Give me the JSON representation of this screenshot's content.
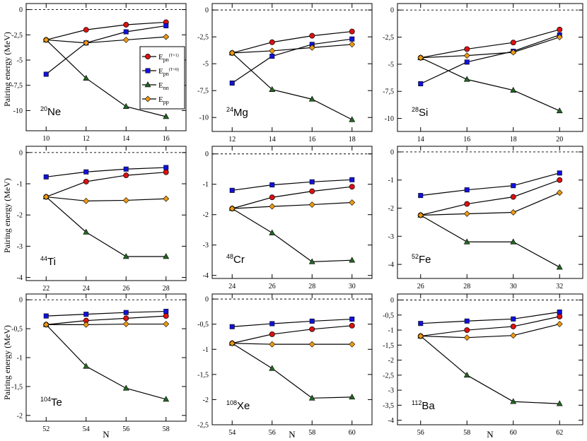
{
  "figure": {
    "ylabel": "Pairing energy (MeV)",
    "xlabel": "N",
    "legend": [
      {
        "name": "E",
        "sub": "pn",
        "sup": "(T=1)",
        "color": "#dd1111",
        "marker": "circle"
      },
      {
        "name": "E",
        "sub": "pn",
        "sup": "(T=0)",
        "color": "#1111dd",
        "marker": "square"
      },
      {
        "name": "E",
        "sub": "nn",
        "sup": "",
        "color": "#226622",
        "marker": "triangle"
      },
      {
        "name": "E",
        "sub": "pp",
        "sup": "",
        "color": "#ee9911",
        "marker": "diamond"
      }
    ]
  },
  "chart_data": [
    {
      "type": "line",
      "nucleus": "Ne",
      "mass": "20",
      "x": [
        10,
        12,
        14,
        16
      ],
      "xlim": [
        9,
        17
      ],
      "ylim": [
        -12,
        0.6
      ],
      "yticks": [
        0,
        -2.5,
        -5,
        -7.5,
        -10
      ],
      "ytick_labels": [
        "0",
        "-2,5",
        "-5",
        "-7,5",
        "-10"
      ],
      "xticks": [
        10,
        12,
        14,
        16
      ],
      "series": [
        {
          "name": "Epn(T=1)",
          "values": [
            -3.0,
            -2.0,
            -1.5,
            -1.25
          ]
        },
        {
          "name": "Epn(T=0)",
          "values": [
            -6.4,
            -3.3,
            -2.2,
            -1.6
          ]
        },
        {
          "name": "Enn",
          "values": [
            -3.0,
            -6.8,
            -9.6,
            -10.6
          ]
        },
        {
          "name": "Epp",
          "values": [
            -3.0,
            -3.3,
            -3.0,
            -2.7
          ]
        }
      ]
    },
    {
      "type": "line",
      "nucleus": "Mg",
      "mass": "24",
      "x": [
        12,
        14,
        16,
        18
      ],
      "xlim": [
        11,
        19
      ],
      "ylim": [
        -11.3,
        0.6
      ],
      "yticks": [
        0,
        -2.5,
        -5,
        -7.5,
        -10
      ],
      "ytick_labels": [
        "0",
        "-2,5",
        "-5",
        "-7,5",
        "-10"
      ],
      "xticks": [
        12,
        14,
        16,
        18
      ],
      "series": [
        {
          "name": "Epn(T=1)",
          "values": [
            -4.0,
            -3.0,
            -2.4,
            -2.0
          ]
        },
        {
          "name": "Epn(T=0)",
          "values": [
            -6.8,
            -4.3,
            -3.2,
            -2.7
          ]
        },
        {
          "name": "Enn",
          "values": [
            -4.0,
            -7.4,
            -8.3,
            -10.2
          ]
        },
        {
          "name": "Epp",
          "values": [
            -4.0,
            -3.8,
            -3.5,
            -3.2
          ]
        }
      ]
    },
    {
      "type": "line",
      "nucleus": "Si",
      "mass": "28",
      "x": [
        14,
        16,
        18,
        20
      ],
      "xlim": [
        13,
        21
      ],
      "ylim": [
        -11.2,
        0.6
      ],
      "yticks": [
        0,
        -2.5,
        -5,
        -7.5,
        -10
      ],
      "ytick_labels": [
        "0",
        "-2,5",
        "-5",
        "-7,5",
        "-10"
      ],
      "xticks": [
        14,
        16,
        18,
        20
      ],
      "series": [
        {
          "name": "Epn(T=1)",
          "values": [
            -4.4,
            -3.6,
            -3.0,
            -1.8
          ]
        },
        {
          "name": "Epn(T=0)",
          "values": [
            -6.8,
            -4.8,
            -3.8,
            -2.3
          ]
        },
        {
          "name": "Enn",
          "values": [
            -4.4,
            -6.4,
            -7.4,
            -9.3
          ]
        },
        {
          "name": "Epp",
          "values": [
            -4.4,
            -4.2,
            -3.9,
            -2.5
          ]
        }
      ]
    },
    {
      "type": "line",
      "nucleus": "Ti",
      "mass": "44",
      "x": [
        22,
        24,
        26,
        28
      ],
      "xlim": [
        21,
        29
      ],
      "ylim": [
        -4.1,
        0.2
      ],
      "yticks": [
        0,
        -1,
        -2,
        -3,
        -4
      ],
      "ytick_labels": [
        "0",
        "-1",
        "-2",
        "-3",
        "-4"
      ],
      "xticks": [
        22,
        24,
        26,
        28
      ],
      "series": [
        {
          "name": "Epn(T=1)",
          "values": [
            -1.42,
            -0.93,
            -0.73,
            -0.63
          ]
        },
        {
          "name": "Epn(T=0)",
          "values": [
            -0.78,
            -0.62,
            -0.53,
            -0.48
          ]
        },
        {
          "name": "Enn",
          "values": [
            -1.42,
            -2.55,
            -3.33,
            -3.33
          ]
        },
        {
          "name": "Epp",
          "values": [
            -1.42,
            -1.55,
            -1.53,
            -1.48
          ]
        }
      ]
    },
    {
      "type": "line",
      "nucleus": "Cr",
      "mass": "48",
      "x": [
        24,
        26,
        28,
        30
      ],
      "xlim": [
        23,
        31
      ],
      "ylim": [
        -4.1,
        0.25
      ],
      "yticks": [
        0,
        -1,
        -2,
        -3,
        -4
      ],
      "ytick_labels": [
        "0",
        "-1",
        "-2",
        "-3",
        "-4"
      ],
      "xticks": [
        24,
        26,
        28,
        30
      ],
      "series": [
        {
          "name": "Epn(T=1)",
          "values": [
            -1.8,
            -1.43,
            -1.23,
            -1.08
          ]
        },
        {
          "name": "Epn(T=0)",
          "values": [
            -1.2,
            -1.02,
            -0.92,
            -0.85
          ]
        },
        {
          "name": "Enn",
          "values": [
            -1.8,
            -2.6,
            -3.55,
            -3.5
          ]
        },
        {
          "name": "Epp",
          "values": [
            -1.8,
            -1.73,
            -1.67,
            -1.6
          ]
        }
      ]
    },
    {
      "type": "line",
      "nucleus": "Fe",
      "mass": "52",
      "x": [
        26,
        28,
        30,
        32
      ],
      "xlim": [
        25,
        33
      ],
      "ylim": [
        -4.5,
        0.2
      ],
      "yticks": [
        0,
        -1,
        -2,
        -3,
        -4
      ],
      "ytick_labels": [
        "0",
        "-1",
        "-2",
        "-3",
        "-4"
      ],
      "xticks": [
        26,
        28,
        30,
        32
      ],
      "series": [
        {
          "name": "Epn(T=1)",
          "values": [
            -2.25,
            -1.85,
            -1.6,
            -1.0
          ]
        },
        {
          "name": "Epn(T=0)",
          "values": [
            -1.55,
            -1.35,
            -1.2,
            -0.75
          ]
        },
        {
          "name": "Enn",
          "values": [
            -2.25,
            -3.2,
            -3.2,
            -4.1
          ]
        },
        {
          "name": "Epp",
          "values": [
            -2.25,
            -2.2,
            -2.15,
            -1.45
          ]
        }
      ]
    },
    {
      "type": "line",
      "nucleus": "Te",
      "mass": "104",
      "x": [
        52,
        54,
        56,
        58
      ],
      "xlim": [
        51,
        59
      ],
      "ylim": [
        -2.1,
        0.1
      ],
      "yticks": [
        0,
        -0.5,
        -1,
        -1.5,
        -2
      ],
      "ytick_labels": [
        "0",
        "-0,5",
        "-1",
        "-1,5",
        "-2"
      ],
      "xticks": [
        52,
        54,
        56,
        58
      ],
      "series": [
        {
          "name": "Epn(T=1)",
          "values": [
            -0.43,
            -0.36,
            -0.32,
            -0.28
          ]
        },
        {
          "name": "Epn(T=0)",
          "values": [
            -0.28,
            -0.25,
            -0.22,
            -0.2
          ]
        },
        {
          "name": "Enn",
          "values": [
            -0.43,
            -1.15,
            -1.53,
            -1.72
          ]
        },
        {
          "name": "Epp",
          "values": [
            -0.43,
            -0.43,
            -0.42,
            -0.42
          ]
        }
      ]
    },
    {
      "type": "line",
      "nucleus": "Xe",
      "mass": "108",
      "x": [
        54,
        56,
        58,
        60
      ],
      "xlim": [
        53,
        61
      ],
      "ylim": [
        -2.5,
        0.1
      ],
      "yticks": [
        0,
        -0.5,
        -1,
        -1.5,
        -2,
        -2.5
      ],
      "ytick_labels": [
        "0",
        "-0,5",
        "-1",
        "-1,5",
        "-2",
        "-2,5"
      ],
      "xticks": [
        54,
        56,
        58,
        60
      ],
      "series": [
        {
          "name": "Epn(T=1)",
          "values": [
            -0.88,
            -0.7,
            -0.6,
            -0.53
          ]
        },
        {
          "name": "Epn(T=0)",
          "values": [
            -0.55,
            -0.49,
            -0.44,
            -0.4
          ]
        },
        {
          "name": "Enn",
          "values": [
            -0.88,
            -1.38,
            -1.97,
            -1.95
          ]
        },
        {
          "name": "Epp",
          "values": [
            -0.88,
            -0.9,
            -0.9,
            -0.9
          ]
        }
      ]
    },
    {
      "type": "line",
      "nucleus": "Ba",
      "mass": "112",
      "x": [
        56,
        58,
        60,
        62
      ],
      "xlim": [
        55,
        63
      ],
      "ylim": [
        -4.15,
        0.2
      ],
      "yticks": [
        0,
        -0.5,
        -1,
        -1.5,
        -2,
        -2.5,
        -3,
        -3.5,
        -4
      ],
      "ytick_labels": [
        "0",
        "-0,5",
        "-1",
        "-1,5",
        "-2",
        "-2,5",
        "-3",
        "-3,5",
        "-4"
      ],
      "xticks": [
        56,
        58,
        60,
        62
      ],
      "series": [
        {
          "name": "Epn(T=1)",
          "values": [
            -1.2,
            -1.0,
            -0.88,
            -0.55
          ]
        },
        {
          "name": "Epn(T=0)",
          "values": [
            -0.78,
            -0.7,
            -0.63,
            -0.4
          ]
        },
        {
          "name": "Enn",
          "values": [
            -1.2,
            -2.5,
            -3.38,
            -3.45
          ]
        },
        {
          "name": "Epp",
          "values": [
            -1.2,
            -1.25,
            -1.18,
            -0.8
          ]
        }
      ]
    }
  ]
}
